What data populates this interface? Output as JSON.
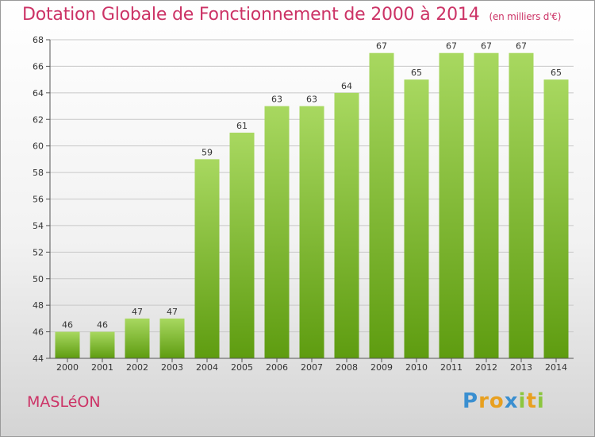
{
  "title": "Dotation Globale de Fonctionnement de 2000 à 2014",
  "unit": "(en milliers d'€)",
  "town": "MASLéON",
  "brand": {
    "letters": [
      "P",
      "r",
      "o",
      "x",
      "i",
      "t",
      "i"
    ],
    "colors": [
      "#3a8fd0",
      "#e8a020",
      "#e8a020",
      "#3a8fd0",
      "#8cc63f",
      "#e8a020",
      "#8cc63f"
    ]
  },
  "colors": {
    "title": "#cc3366",
    "bar_top": "#a8d860",
    "bar_bottom": "#5e9c10",
    "grid": "#c8c8c8",
    "axis_text": "#333333"
  },
  "chart_data": {
    "type": "bar",
    "title": "Dotation Globale de Fonctionnement de 2000 à 2014",
    "xlabel": "",
    "ylabel": "(en milliers d'€)",
    "categories": [
      "2000",
      "2001",
      "2002",
      "2003",
      "2004",
      "2005",
      "2006",
      "2007",
      "2008",
      "2009",
      "2010",
      "2011",
      "2012",
      "2013",
      "2014"
    ],
    "values": [
      46,
      46,
      47,
      47,
      59,
      61,
      63,
      63,
      64,
      67,
      65,
      67,
      67,
      67,
      65
    ],
    "ylim": [
      44,
      68
    ],
    "yticks": [
      44,
      46,
      48,
      50,
      52,
      54,
      56,
      58,
      60,
      62,
      64,
      66,
      68
    ],
    "grid": true,
    "legend": "none"
  }
}
